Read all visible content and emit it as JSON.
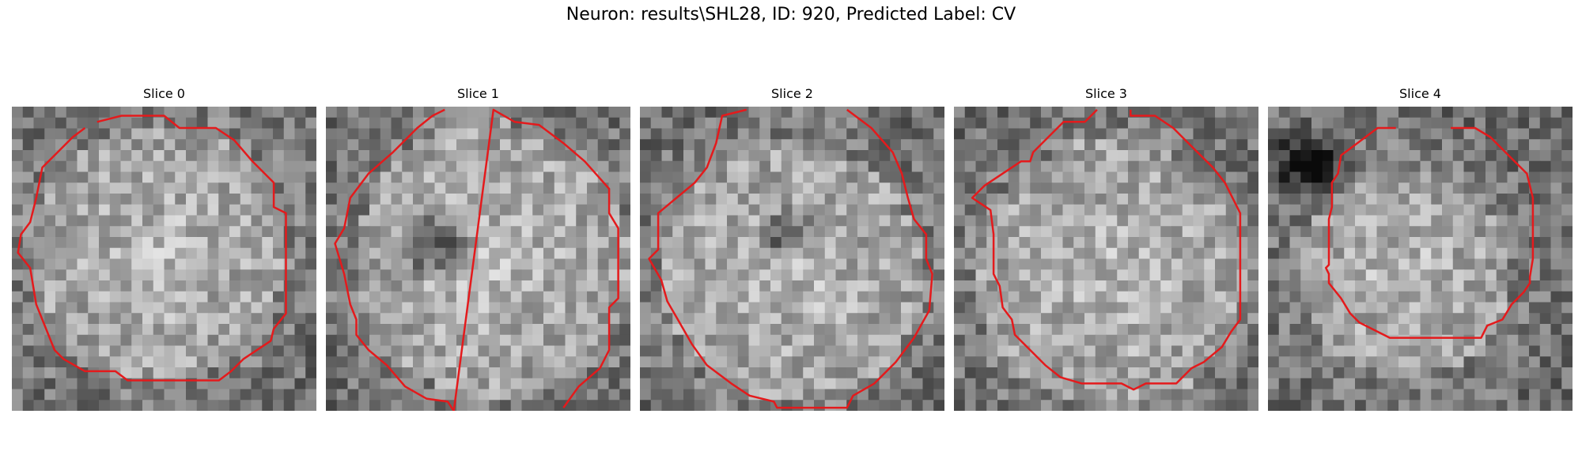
{
  "figure": {
    "title": "Neuron: results\\SHL28, ID: 920, Predicted Label: CV"
  },
  "panels": [
    {
      "title": "Slice 0",
      "bright_center": [
        0.48,
        0.48
      ],
      "bright_radius": 0.42,
      "dark_spot": null,
      "contour": [
        [
          0.28,
          0.05
        ],
        [
          0.36,
          0.03
        ],
        [
          0.5,
          0.03
        ],
        [
          0.55,
          0.07
        ],
        [
          0.67,
          0.07
        ],
        [
          0.73,
          0.11
        ],
        [
          0.79,
          0.18
        ],
        [
          0.86,
          0.25
        ],
        [
          0.86,
          0.33
        ],
        [
          0.9,
          0.35
        ],
        [
          0.9,
          0.68
        ],
        [
          0.86,
          0.73
        ],
        [
          0.85,
          0.77
        ],
        [
          0.76,
          0.83
        ],
        [
          0.72,
          0.87
        ],
        [
          0.68,
          0.9
        ],
        [
          0.62,
          0.9
        ],
        [
          0.53,
          0.9
        ],
        [
          0.38,
          0.9
        ],
        [
          0.34,
          0.87
        ],
        [
          0.24,
          0.87
        ],
        [
          0.17,
          0.83
        ],
        [
          0.14,
          0.8
        ],
        [
          0.1,
          0.7
        ],
        [
          0.08,
          0.65
        ],
        [
          0.06,
          0.53
        ],
        [
          0.02,
          0.48
        ],
        [
          0.03,
          0.42
        ],
        [
          0.06,
          0.38
        ],
        [
          0.08,
          0.3
        ],
        [
          0.1,
          0.2
        ],
        [
          0.15,
          0.15
        ],
        [
          0.2,
          0.1
        ],
        [
          0.24,
          0.07
        ]
      ]
    },
    {
      "title": "Slice 1",
      "bright_center": [
        0.55,
        0.5
      ],
      "bright_radius": 0.45,
      "dark_spot": [
        0.35,
        0.45,
        0.14
      ],
      "contour": [
        [
          0.39,
          0.01
        ],
        [
          0.35,
          0.03
        ],
        [
          0.3,
          0.07
        ],
        [
          0.22,
          0.15
        ],
        [
          0.14,
          0.22
        ],
        [
          0.08,
          0.3
        ],
        [
          0.06,
          0.4
        ],
        [
          0.03,
          0.45
        ],
        [
          0.06,
          0.55
        ],
        [
          0.08,
          0.65
        ],
        [
          0.1,
          0.7
        ],
        [
          0.1,
          0.75
        ],
        [
          0.14,
          0.8
        ],
        [
          0.2,
          0.85
        ],
        [
          0.26,
          0.92
        ],
        [
          0.33,
          0.96
        ],
        [
          0.4,
          0.97
        ],
        [
          0.42,
          1.0
        ],
        [
          0.55,
          0.01
        ],
        [
          0.62,
          0.05
        ],
        [
          0.7,
          0.06
        ],
        [
          0.78,
          0.12
        ],
        [
          0.85,
          0.18
        ],
        [
          0.93,
          0.27
        ],
        [
          0.93,
          0.35
        ],
        [
          0.96,
          0.4
        ],
        [
          0.96,
          0.63
        ],
        [
          0.93,
          0.66
        ],
        [
          0.93,
          0.8
        ],
        [
          0.9,
          0.86
        ],
        [
          0.83,
          0.92
        ],
        [
          0.78,
          0.99
        ]
      ]
    },
    {
      "title": "Slice 2",
      "bright_center": [
        0.5,
        0.55
      ],
      "bright_radius": 0.43,
      "dark_spot": [
        0.48,
        0.42,
        0.11
      ],
      "contour": [
        [
          0.35,
          0.01
        ],
        [
          0.27,
          0.03
        ],
        [
          0.25,
          0.12
        ],
        [
          0.22,
          0.2
        ],
        [
          0.18,
          0.25
        ],
        [
          0.12,
          0.3
        ],
        [
          0.06,
          0.35
        ],
        [
          0.06,
          0.47
        ],
        [
          0.03,
          0.5
        ],
        [
          0.07,
          0.57
        ],
        [
          0.09,
          0.64
        ],
        [
          0.13,
          0.71
        ],
        [
          0.17,
          0.78
        ],
        [
          0.22,
          0.85
        ],
        [
          0.3,
          0.91
        ],
        [
          0.36,
          0.95
        ],
        [
          0.44,
          0.97
        ],
        [
          0.45,
          0.99
        ],
        [
          0.68,
          0.99
        ],
        [
          0.7,
          0.95
        ],
        [
          0.77,
          0.91
        ],
        [
          0.84,
          0.84
        ],
        [
          0.9,
          0.76
        ],
        [
          0.95,
          0.67
        ],
        [
          0.96,
          0.55
        ],
        [
          0.94,
          0.5
        ],
        [
          0.94,
          0.42
        ],
        [
          0.9,
          0.37
        ],
        [
          0.88,
          0.3
        ],
        [
          0.86,
          0.22
        ],
        [
          0.83,
          0.15
        ],
        [
          0.76,
          0.07
        ],
        [
          0.68,
          0.01
        ]
      ]
    },
    {
      "title": "Slice 3",
      "bright_center": [
        0.52,
        0.55
      ],
      "bright_radius": 0.44,
      "dark_spot": null,
      "contour": [
        [
          0.47,
          0.01
        ],
        [
          0.43,
          0.05
        ],
        [
          0.36,
          0.05
        ],
        [
          0.31,
          0.1
        ],
        [
          0.26,
          0.15
        ],
        [
          0.25,
          0.18
        ],
        [
          0.22,
          0.18
        ],
        [
          0.16,
          0.22
        ],
        [
          0.1,
          0.26
        ],
        [
          0.06,
          0.3
        ],
        [
          0.12,
          0.34
        ],
        [
          0.13,
          0.42
        ],
        [
          0.13,
          0.55
        ],
        [
          0.15,
          0.59
        ],
        [
          0.16,
          0.66
        ],
        [
          0.19,
          0.7
        ],
        [
          0.2,
          0.75
        ],
        [
          0.23,
          0.78
        ],
        [
          0.3,
          0.85
        ],
        [
          0.35,
          0.89
        ],
        [
          0.42,
          0.91
        ],
        [
          0.55,
          0.91
        ],
        [
          0.59,
          0.93
        ],
        [
          0.63,
          0.91
        ],
        [
          0.73,
          0.91
        ],
        [
          0.78,
          0.86
        ],
        [
          0.82,
          0.84
        ],
        [
          0.88,
          0.79
        ],
        [
          0.91,
          0.74
        ],
        [
          0.94,
          0.7
        ],
        [
          0.94,
          0.35
        ],
        [
          0.89,
          0.25
        ],
        [
          0.85,
          0.2
        ],
        [
          0.77,
          0.12
        ],
        [
          0.72,
          0.07
        ],
        [
          0.66,
          0.03
        ],
        [
          0.58,
          0.03
        ],
        [
          0.58,
          0.01
        ]
      ]
    },
    {
      "title": "Slice 4",
      "bright_center": [
        0.45,
        0.55
      ],
      "bright_radius": 0.34,
      "dark_spot": [
        0.14,
        0.2,
        0.16
      ],
      "contour": [
        [
          0.42,
          0.07
        ],
        [
          0.36,
          0.07
        ],
        [
          0.28,
          0.13
        ],
        [
          0.24,
          0.16
        ],
        [
          0.23,
          0.22
        ],
        [
          0.21,
          0.25
        ],
        [
          0.21,
          0.33
        ],
        [
          0.2,
          0.37
        ],
        [
          0.2,
          0.52
        ],
        [
          0.19,
          0.53
        ],
        [
          0.2,
          0.55
        ],
        [
          0.2,
          0.58
        ],
        [
          0.24,
          0.63
        ],
        [
          0.27,
          0.68
        ],
        [
          0.3,
          0.71
        ],
        [
          0.4,
          0.76
        ],
        [
          0.7,
          0.76
        ],
        [
          0.72,
          0.72
        ],
        [
          0.77,
          0.7
        ],
        [
          0.8,
          0.65
        ],
        [
          0.84,
          0.61
        ],
        [
          0.86,
          0.58
        ],
        [
          0.86,
          0.56
        ],
        [
          0.87,
          0.5
        ],
        [
          0.87,
          0.43
        ],
        [
          0.87,
          0.3
        ],
        [
          0.85,
          0.22
        ],
        [
          0.8,
          0.17
        ],
        [
          0.73,
          0.1
        ],
        [
          0.68,
          0.07
        ],
        [
          0.6,
          0.07
        ]
      ]
    }
  ]
}
